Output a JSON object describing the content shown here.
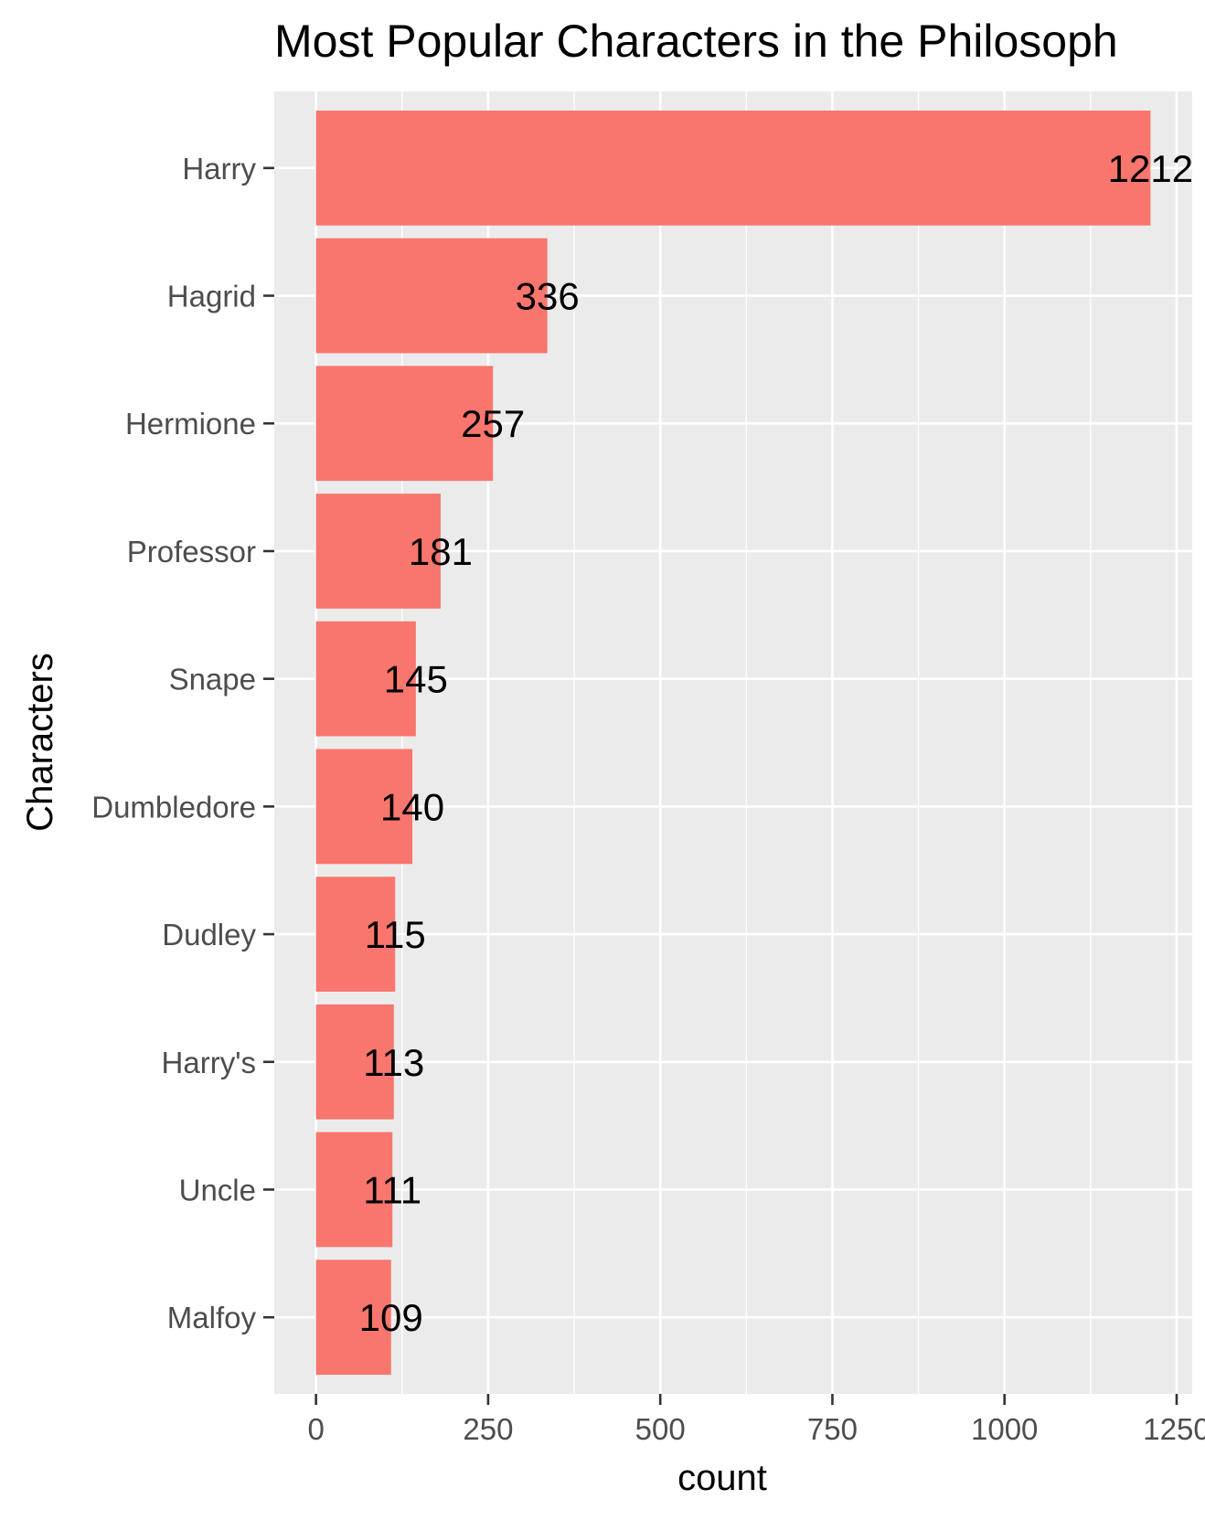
{
  "chart_data": {
    "type": "bar",
    "orientation": "horizontal",
    "title": "Most Popular Characters in the Philosoph",
    "xlabel": "count",
    "ylabel": "Characters",
    "categories": [
      "Harry",
      "Hagrid",
      "Hermione",
      "Professor",
      "Snape",
      "Dumbledore",
      "Dudley",
      "Harry's",
      "Uncle",
      "Malfoy"
    ],
    "values": [
      1212,
      336,
      257,
      181,
      145,
      140,
      115,
      113,
      111,
      109
    ],
    "data_labels": [
      "1212",
      "336",
      "257",
      "181",
      "145",
      "140",
      "115",
      "113",
      "111",
      "109"
    ],
    "x_ticks": [
      0,
      250,
      500,
      750,
      1000,
      1250
    ],
    "x_tick_labels": [
      "0",
      "250",
      "500",
      "750",
      "1000",
      "1250"
    ],
    "xlim": [
      -60.6,
      1272.6
    ],
    "grid": true,
    "legend": "none",
    "colors": {
      "bar": "#f8766d",
      "panel": "#ebebeb",
      "grid": "#ffffff"
    }
  }
}
